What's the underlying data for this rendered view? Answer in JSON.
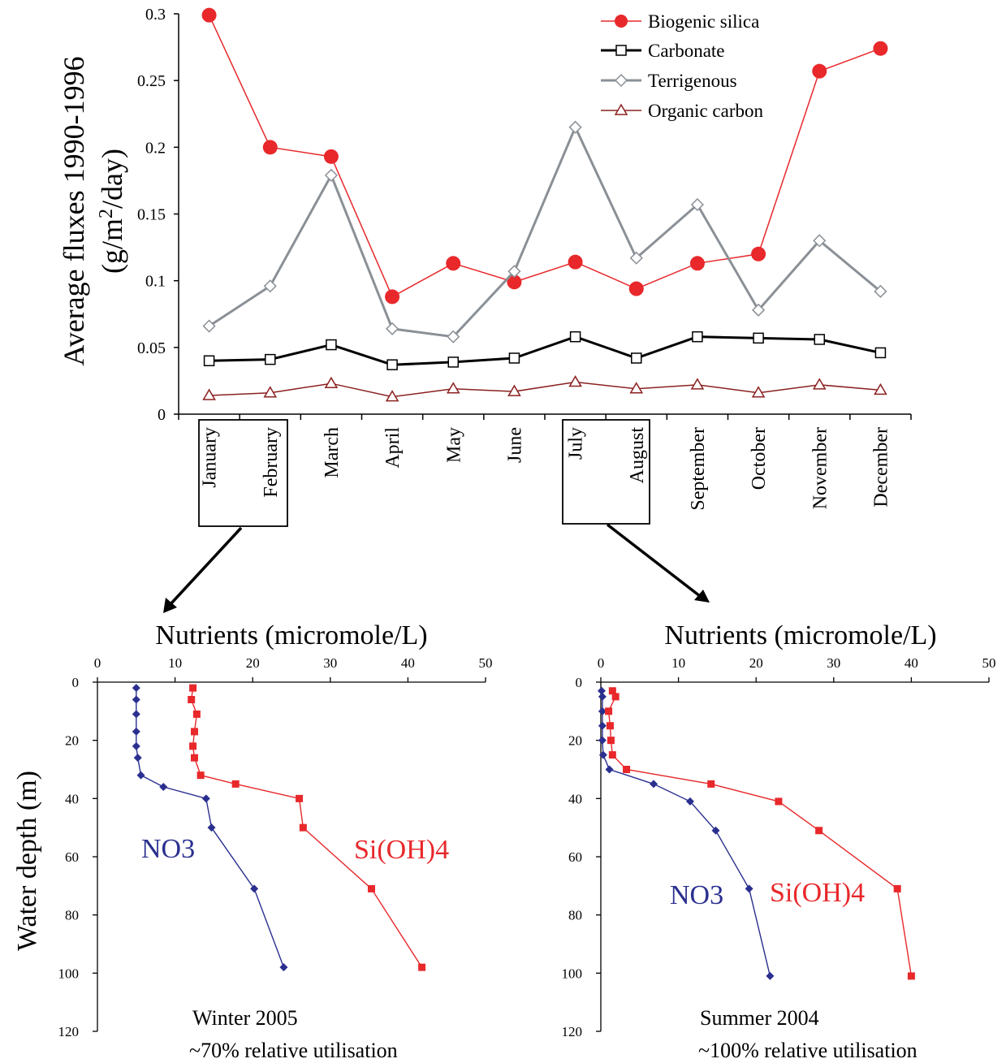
{
  "chart_data": [
    {
      "type": "line",
      "ylabel_line1": "Average fluxes 1990-1996",
      "ylabel_line2_pre": "(g/m",
      "ylabel_line2_sup": "2",
      "ylabel_line2_post": "/day)",
      "ylim": [
        0,
        0.3
      ],
      "yticks": [
        "0",
        "0.05",
        "0.1",
        "0.15",
        "0.2",
        "0.25",
        "0.3"
      ],
      "categories": [
        "January",
        "February",
        "March",
        "April",
        "May",
        "June",
        "July",
        "August",
        "September",
        "October",
        "November",
        "December"
      ],
      "legend_position": "top-right",
      "series": [
        {
          "name": "Biogenic silica",
          "color": "#e8282b",
          "marker": "filled-circle",
          "values": [
            0.299,
            0.2,
            0.193,
            0.088,
            0.113,
            0.099,
            0.114,
            0.094,
            0.113,
            0.12,
            0.257,
            0.274
          ]
        },
        {
          "name": "Carbonate",
          "color": "#000000",
          "marker": "open-square",
          "values": [
            0.04,
            0.041,
            0.052,
            0.037,
            0.039,
            0.042,
            0.058,
            0.042,
            0.058,
            0.057,
            0.056,
            0.046
          ]
        },
        {
          "name": "Terrigenous",
          "color": "#8a9096",
          "marker": "open-diamond",
          "values": [
            0.066,
            0.096,
            0.179,
            0.064,
            0.058,
            0.107,
            0.215,
            0.117,
            0.157,
            0.078,
            0.13,
            0.092
          ]
        },
        {
          "name": "Organic carbon",
          "color": "#8b2020",
          "marker": "open-triangle",
          "values": [
            0.014,
            0.016,
            0.023,
            0.013,
            0.019,
            0.017,
            0.024,
            0.019,
            0.022,
            0.016,
            0.022,
            0.018
          ]
        }
      ]
    },
    {
      "type": "line",
      "title": "Nutrients (micromole/L)",
      "ylabel": "Water depth (m)",
      "xlim": [
        0,
        50
      ],
      "ylim": [
        0,
        120
      ],
      "xticks": [
        "0",
        "10",
        "20",
        "30",
        "40",
        "50"
      ],
      "yticks": [
        "0",
        "20",
        "40",
        "60",
        "80",
        "100",
        "120"
      ],
      "caption_line1": "Winter 2005",
      "caption_line2": "~70% relative utilisation",
      "series": [
        {
          "name": "NO3",
          "color": "#2a2f8f",
          "points": [
            [
              5,
              2
            ],
            [
              5,
              6
            ],
            [
              5,
              11
            ],
            [
              5,
              17
            ],
            [
              5,
              22
            ],
            [
              5.2,
              26
            ],
            [
              5.6,
              32
            ],
            [
              8.5,
              36
            ],
            [
              14,
              40
            ],
            [
              14.7,
              50
            ],
            [
              20.2,
              71
            ],
            [
              24,
              98
            ]
          ]
        },
        {
          "name": "Si(OH)4",
          "color": "#e8282b",
          "points": [
            [
              12.3,
              2
            ],
            [
              12.1,
              6
            ],
            [
              12.8,
              11
            ],
            [
              12.5,
              17
            ],
            [
              12.3,
              22
            ],
            [
              12.5,
              26
            ],
            [
              13.3,
              32
            ],
            [
              17.8,
              35
            ],
            [
              26,
              40
            ],
            [
              26.5,
              50
            ],
            [
              35.3,
              71
            ],
            [
              41.8,
              98
            ]
          ]
        }
      ]
    },
    {
      "type": "line",
      "title": "Nutrients (micromole/L)",
      "xlim": [
        0,
        50
      ],
      "ylim": [
        0,
        120
      ],
      "xticks": [
        "0",
        "10",
        "20",
        "30",
        "40",
        "50"
      ],
      "yticks": [
        "0",
        "20",
        "40",
        "60",
        "80",
        "100",
        "120"
      ],
      "caption_line1": "Summer 2004",
      "caption_line2": "~100% relative utilisation",
      "series": [
        {
          "name": "NO3",
          "color": "#2a2f8f",
          "points": [
            [
              0.1,
              3
            ],
            [
              0.2,
              5
            ],
            [
              0.2,
              10
            ],
            [
              0.2,
              15
            ],
            [
              0.2,
              20
            ],
            [
              0.3,
              25
            ],
            [
              1.1,
              30
            ],
            [
              6.8,
              35
            ],
            [
              11.5,
              41
            ],
            [
              14.8,
              51
            ],
            [
              19.1,
              71
            ],
            [
              21.8,
              101
            ]
          ]
        },
        {
          "name": "Si(OH)4",
          "color": "#e8282b",
          "points": [
            [
              1.5,
              3
            ],
            [
              1.9,
              5
            ],
            [
              1.0,
              10
            ],
            [
              1.2,
              15
            ],
            [
              1.3,
              20
            ],
            [
              1.5,
              25
            ],
            [
              3.3,
              30
            ],
            [
              14.2,
              35
            ],
            [
              22.9,
              41
            ],
            [
              28.1,
              51
            ],
            [
              38.2,
              71
            ],
            [
              40.0,
              101
            ]
          ]
        }
      ]
    }
  ]
}
